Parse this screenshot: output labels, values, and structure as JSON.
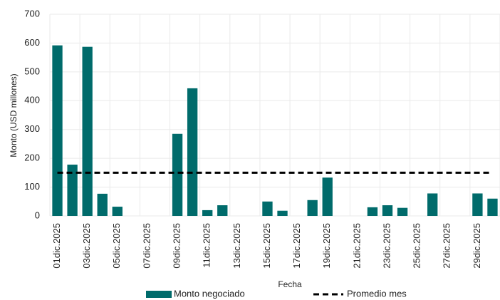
{
  "chart_data": {
    "type": "bar",
    "x_label": "Fecha",
    "y_label": "Monto (USD millones)",
    "categories": [
      "01dic.2025",
      null,
      "03dic.2025",
      null,
      "05dic.2025",
      null,
      "07dic.2025",
      null,
      "09dic.2025",
      null,
      "11dic.2025",
      null,
      "13dic.2025",
      null,
      "15dic.2025",
      null,
      "17dic.2025",
      null,
      "19dic.2025",
      null,
      "21dic.2025",
      null,
      "23dic.2025",
      null,
      "25dic.2025",
      null,
      "27dic.2025",
      null,
      "29dic.2025",
      null
    ],
    "series": [
      {
        "name": "Monto negociado",
        "type": "bar",
        "color": "#006b6b",
        "values": [
          592,
          178,
          587,
          77,
          32,
          0,
          0,
          0,
          285,
          443,
          20,
          37,
          0,
          0,
          50,
          18,
          0,
          55,
          133,
          0,
          0,
          30,
          37,
          28,
          0,
          78,
          0,
          0,
          78,
          60
        ]
      },
      {
        "name": "Promedio mes",
        "type": "line",
        "color": "#000000",
        "dashed": true,
        "values": [
          150,
          150,
          150,
          150,
          150,
          150,
          150,
          150,
          150,
          150,
          150,
          150,
          150,
          150,
          150,
          150,
          150,
          150,
          150,
          150,
          150,
          150,
          150,
          150,
          150,
          150,
          150,
          150,
          150,
          150
        ]
      }
    ],
    "ylim": [
      0,
      700
    ],
    "yticks": [
      0,
      100,
      200,
      300,
      400,
      500,
      600,
      700
    ],
    "grid": true
  }
}
